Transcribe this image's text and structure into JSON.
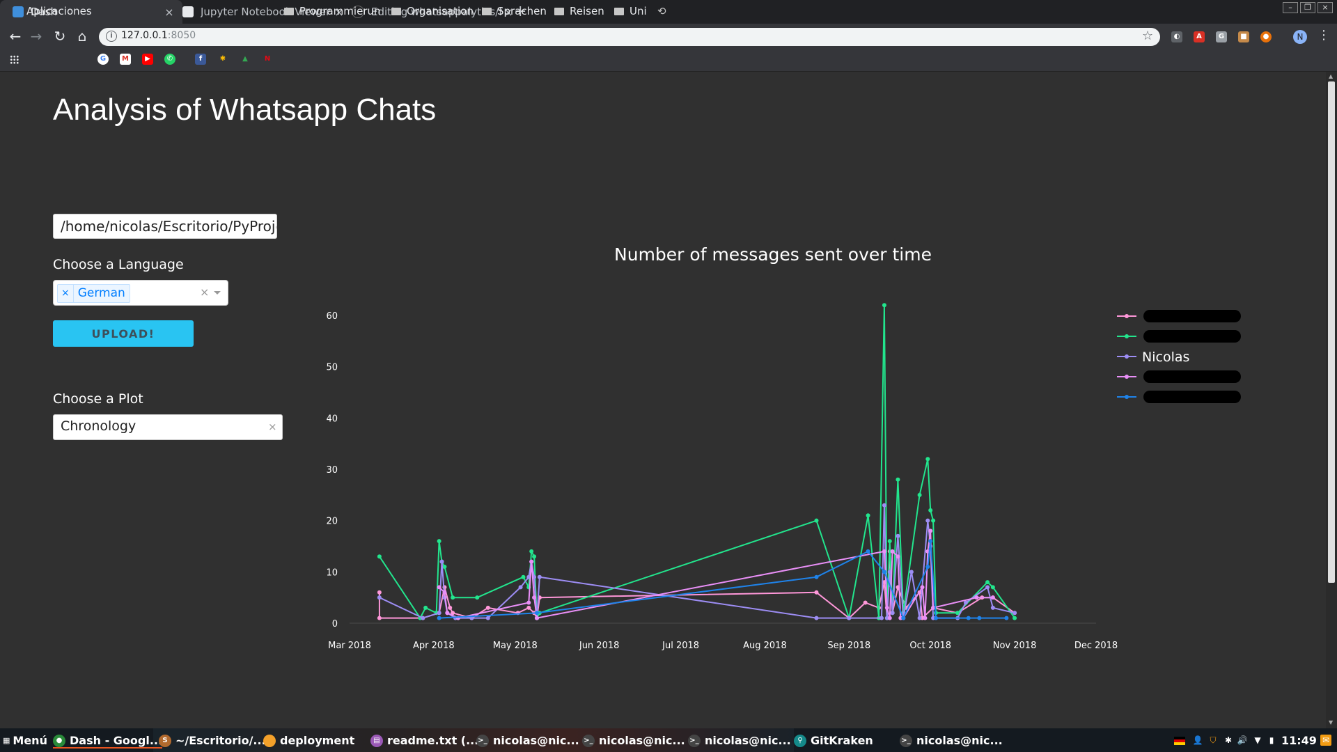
{
  "browser": {
    "tabs": [
      {
        "label": "Dash",
        "active": true
      },
      {
        "label": "Jupyter Notebook Viewer",
        "active": false
      },
      {
        "label": "Editing whatsappalytics/f",
        "active": false
      }
    ],
    "new_tab_label": "+",
    "url_host": "127.0.0.1",
    "url_port": ":8050",
    "bookmarks": {
      "apps_label": "Aplicaciones",
      "folders": [
        "Programmierun",
        "Organisation",
        "Sprachen",
        "Reisen",
        "Uni"
      ]
    },
    "profile_initial": "N"
  },
  "page": {
    "title": "Analysis of Whatsapp Chats",
    "path_value": "/home/nicolas/Escritorio/PyProje",
    "language_label": "Choose a Language",
    "language_value": "German",
    "upload_label": "UPLOAD!",
    "plot_label": "Choose a Plot",
    "plot_value": "Chronology"
  },
  "chart_data": {
    "type": "line",
    "title": "Number of messages sent over time",
    "xlabel": "",
    "ylabel": "",
    "x_tick_labels": [
      "Mar 2018",
      "Apr 2018",
      "May 2018",
      "Jun 2018",
      "Jul 2018",
      "Aug 2018",
      "Sep 2018",
      "Oct 2018",
      "Nov 2018",
      "Dec 2018"
    ],
    "x_range_days": [
      0,
      275
    ],
    "x_axis_origin": "2018-03-01",
    "y_ticks": [
      0,
      10,
      20,
      30,
      40,
      50,
      60
    ],
    "ylim": [
      0,
      65
    ],
    "legend_position": "top-right",
    "series": [
      {
        "name": "",
        "color": "#ff97d9",
        "points": [
          [
            11,
            6
          ],
          [
            11,
            1
          ],
          [
            27,
            1
          ],
          [
            33,
            2
          ],
          [
            35,
            7
          ],
          [
            37,
            3
          ],
          [
            38,
            2
          ],
          [
            45,
            1
          ],
          [
            51,
            3
          ],
          [
            62,
            2
          ],
          [
            66,
            3
          ],
          [
            68,
            2
          ],
          [
            69,
            1
          ],
          [
            70,
            5
          ],
          [
            172,
            6
          ],
          [
            184,
            1
          ],
          [
            190,
            4
          ],
          [
            195,
            3
          ],
          [
            197,
            8
          ],
          [
            198,
            1
          ],
          [
            199,
            14
          ],
          [
            200,
            2
          ],
          [
            202,
            7
          ],
          [
            205,
            3
          ],
          [
            210,
            6
          ],
          [
            211,
            1
          ],
          [
            215,
            3
          ],
          [
            224,
            2
          ],
          [
            233,
            5
          ],
          [
            237,
            5
          ],
          [
            245,
            2
          ]
        ]
      },
      {
        "name": "",
        "color": "#22e58d",
        "points": [
          [
            11,
            13
          ],
          [
            26,
            1
          ],
          [
            28,
            3
          ],
          [
            32,
            2
          ],
          [
            33,
            16
          ],
          [
            34,
            12
          ],
          [
            35,
            11
          ],
          [
            38,
            5
          ],
          [
            47,
            5
          ],
          [
            64,
            9
          ],
          [
            66,
            7
          ],
          [
            67,
            14
          ],
          [
            68,
            13
          ],
          [
            69,
            1
          ],
          [
            70,
            2
          ],
          [
            172,
            20
          ],
          [
            184,
            1
          ],
          [
            191,
            21
          ],
          [
            195,
            1
          ],
          [
            197,
            62
          ],
          [
            198,
            1
          ],
          [
            199,
            16
          ],
          [
            200,
            2
          ],
          [
            202,
            28
          ],
          [
            204,
            2
          ],
          [
            210,
            25
          ],
          [
            213,
            32
          ],
          [
            214,
            22
          ],
          [
            215,
            20
          ],
          [
            216,
            2
          ],
          [
            224,
            2
          ],
          [
            235,
            8
          ],
          [
            237,
            7
          ],
          [
            245,
            1
          ]
        ]
      },
      {
        "name": "Nicolas",
        "color": "#9d8df4",
        "points": [
          [
            11,
            5
          ],
          [
            27,
            1
          ],
          [
            33,
            2
          ],
          [
            34,
            12
          ],
          [
            35,
            5
          ],
          [
            36,
            2
          ],
          [
            39,
            1
          ],
          [
            45,
            1
          ],
          [
            51,
            1
          ],
          [
            63,
            7
          ],
          [
            66,
            9
          ],
          [
            67,
            12
          ],
          [
            68,
            9
          ],
          [
            69,
            1
          ],
          [
            70,
            9
          ],
          [
            172,
            1
          ],
          [
            184,
            1
          ],
          [
            196,
            1
          ],
          [
            197,
            23
          ],
          [
            198,
            1
          ],
          [
            199,
            10
          ],
          [
            200,
            2
          ],
          [
            202,
            17
          ],
          [
            204,
            1
          ],
          [
            207,
            10
          ],
          [
            210,
            1
          ],
          [
            213,
            20
          ],
          [
            214,
            15
          ],
          [
            215,
            1
          ],
          [
            224,
            1
          ],
          [
            227,
            4
          ],
          [
            235,
            7
          ],
          [
            237,
            3
          ],
          [
            245,
            2
          ]
        ]
      },
      {
        "name": "",
        "color": "#e98ff7",
        "points": [
          [
            33,
            7
          ],
          [
            35,
            6
          ],
          [
            36,
            2
          ],
          [
            40,
            1
          ],
          [
            66,
            4
          ],
          [
            67,
            12
          ],
          [
            68,
            5
          ],
          [
            69,
            1
          ],
          [
            197,
            14
          ],
          [
            198,
            3
          ],
          [
            199,
            1
          ],
          [
            200,
            14
          ],
          [
            202,
            13
          ],
          [
            203,
            1
          ],
          [
            204,
            1
          ],
          [
            211,
            7
          ],
          [
            212,
            1
          ],
          [
            213,
            14
          ],
          [
            214,
            18
          ],
          [
            215,
            3
          ],
          [
            231,
            5
          ],
          [
            237,
            5
          ]
        ]
      },
      {
        "name": "",
        "color": "#1f83ea",
        "points": [
          [
            33,
            1
          ],
          [
            69,
            2
          ],
          [
            172,
            9
          ],
          [
            191,
            14
          ],
          [
            197,
            10
          ],
          [
            204,
            1
          ],
          [
            213,
            11
          ],
          [
            214,
            16
          ],
          [
            216,
            1
          ],
          [
            228,
            1
          ],
          [
            232,
            1
          ],
          [
            242,
            1
          ]
        ]
      }
    ]
  },
  "taskbar": {
    "menu_label": "Menú",
    "apps": [
      {
        "label": "Dash - Googl...",
        "color": "#2a8b3a",
        "glyph": "●"
      },
      {
        "label": "~/Escritorio/...",
        "color": "#b26a2e",
        "glyph": "S"
      },
      {
        "label": "deployment",
        "color": "#f4a12a",
        "glyph": ""
      },
      {
        "label": "readme.txt (...",
        "color": "#9b59b6",
        "glyph": "▤"
      },
      {
        "label": "nicolas@nic...",
        "color": "#444",
        "glyph": ">_"
      },
      {
        "label": "nicolas@nic...",
        "color": "#444",
        "glyph": ">_"
      },
      {
        "label": "nicolas@nic...",
        "color": "#444",
        "glyph": ">_"
      },
      {
        "label": "GitKraken",
        "color": "#148a8a",
        "glyph": "⚲"
      },
      {
        "label": "nicolas@nic...",
        "color": "#444",
        "glyph": ">_"
      }
    ],
    "clock": "11:49"
  }
}
